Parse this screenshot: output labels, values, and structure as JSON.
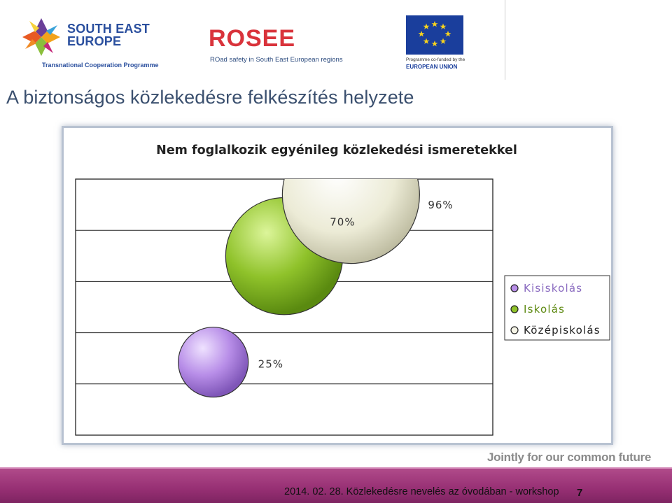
{
  "header": {
    "logo_see": {
      "line1": "SOUTH EAST",
      "line2": "EUROPE",
      "subtitle": "Transnational Cooperation Programme"
    },
    "logo_rosee": {
      "name": "ROSEE",
      "subtitle": "ROad safety in South East European regions"
    },
    "logo_eu": {
      "line1": "Programme co-funded by the",
      "line2": "EUROPEAN UNION"
    }
  },
  "page_title": "A biztonságos közlekedésre felkészítés helyzete",
  "chart_data": {
    "type": "bubble",
    "title": "Nem foglalkozik egyénileg közlekedési ismeretekkel",
    "xlabel": "",
    "ylabel": "",
    "series": [
      {
        "name": "Kisiskolás",
        "value": 25,
        "label": "25%",
        "color": "#b88ee8"
      },
      {
        "name": "Iskolás",
        "value": 70,
        "label": "70%",
        "color": "#8fc22a"
      },
      {
        "name": "Középiskolás",
        "value": 96,
        "label": "96%",
        "color": "#ecebd6"
      }
    ],
    "gridlines": 5,
    "legend_position": "right"
  },
  "footer": {
    "tagline": "Jointly for our common future",
    "text": "2014. 02. 28. Közlekedésre nevelés az óvodában - workshop",
    "page_number": "7"
  }
}
